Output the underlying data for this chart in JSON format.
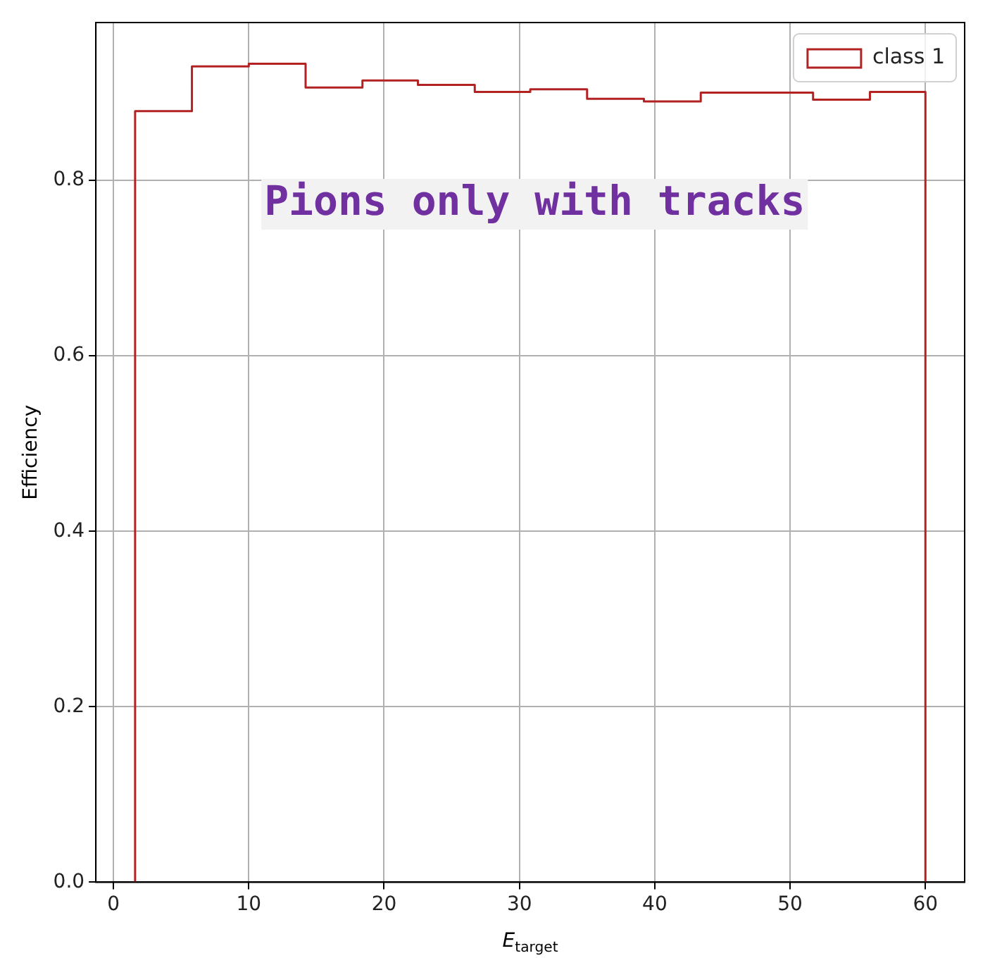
{
  "chart_data": {
    "type": "histogram",
    "xlabel": "E$_{target}$",
    "ylabel": "Efficiency",
    "annotations": [
      "Pions only with tracks"
    ],
    "bins": [
      1.6,
      5.8,
      10,
      14.2,
      18.4,
      22.5,
      26.7,
      30.8,
      35,
      39.2,
      43.4,
      47.6,
      51.7,
      55.9,
      60
    ],
    "series": [
      {
        "name": "class 1",
        "color": "#b22222",
        "values": [
          0.879,
          0.93,
          0.933,
          0.906,
          0.914,
          0.909,
          0.901,
          0.904,
          0.893,
          0.89,
          0.9,
          0.9,
          0.892,
          0.901
        ]
      }
    ],
    "xlim": [
      -1.3,
      62.9
    ],
    "ylim": [
      0,
      0.98
    ],
    "xticks": [
      0,
      10,
      20,
      30,
      40,
      50,
      60
    ],
    "yticks": [
      {
        "value": 0,
        "label": "0.0"
      },
      0.2,
      0.4,
      0.6,
      0.8
    ],
    "grid": true,
    "legend": "top right"
  }
}
